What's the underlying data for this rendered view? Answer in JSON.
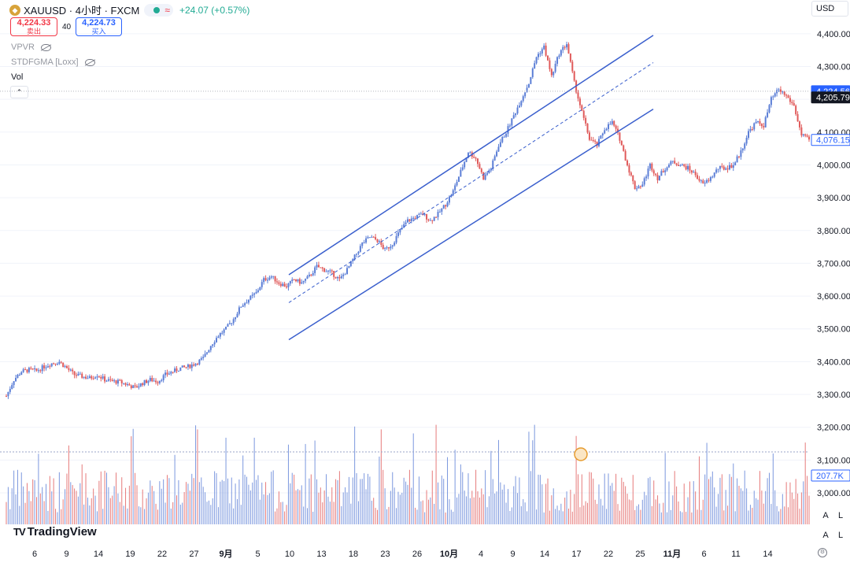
{
  "header": {
    "symbol_icon": "gold-coin-icon",
    "title": "XAUUSD · 4小时 · FXCM",
    "status_icons": [
      "market-open-dot-icon",
      "wave-icon"
    ],
    "status_glyph": "≈",
    "change": "+24.07 (+0.57%)",
    "sell_price": "4,224.33",
    "sell_label": "卖出",
    "spread": "40",
    "buy_price": "4,224.73",
    "buy_label": "买入"
  },
  "indicators": [
    {
      "name": "VPVR",
      "icon": "hidden-eye-icon"
    },
    {
      "name": "STDFGMA [Loxx]",
      "icon": "hidden-eye-icon"
    }
  ],
  "volume_label": "Vol",
  "collapse_glyph": "⌃",
  "currency": "USD",
  "scale_buttons": [
    "A",
    "L"
  ],
  "logo": {
    "mark": "TV",
    "text": "TradingView"
  },
  "colors": {
    "up": "#5b7ed6",
    "down": "#e05a5a",
    "channel": "#3a5fcd",
    "grid": "#f0f3fa"
  },
  "chart_data": {
    "type": "candlestick",
    "y_ticks": [
      "4,400.00",
      "4,300.00",
      "4,200.00",
      "4,100.00",
      "4,000.00",
      "3,900.00",
      "3,800.00",
      "3,700.00",
      "3,600.00",
      "3,500.00",
      "3,400.00",
      "3,300.00",
      "3,200.00",
      "3,100.00",
      "3,000.00"
    ],
    "y_tick_values": [
      4400,
      4300,
      4200,
      4100,
      4000,
      3900,
      3800,
      3700,
      3600,
      3500,
      3400,
      3300,
      3200,
      3100,
      3000
    ],
    "ylim": [
      2950,
      4500
    ],
    "x_ticks": [
      "6",
      "9",
      "14",
      "19",
      "22",
      "27",
      "9月",
      "5",
      "10",
      "13",
      "18",
      "23",
      "26",
      "10月",
      "4",
      "9",
      "14",
      "17",
      "22",
      "25",
      "11月",
      "6",
      "11",
      "14"
    ],
    "price_labels": {
      "last": "4,224.56",
      "prev_close": "4,205.79",
      "lower": "4,076.15",
      "volume": "207.7K"
    },
    "price_label_values": {
      "last": 4224.56,
      "prev_close": 4205.79,
      "lower": 4076.15
    },
    "price_path": [
      [
        0,
        3295
      ],
      [
        1,
        3345
      ],
      [
        2,
        3370
      ],
      [
        3,
        3375
      ],
      [
        4,
        3372
      ],
      [
        5,
        3385
      ],
      [
        6,
        3395
      ],
      [
        7,
        3400
      ],
      [
        8,
        3380
      ],
      [
        9,
        3360
      ],
      [
        10,
        3355
      ],
      [
        11,
        3350
      ],
      [
        12,
        3360
      ],
      [
        13,
        3345
      ],
      [
        14,
        3340
      ],
      [
        15,
        3338
      ],
      [
        16,
        3330
      ],
      [
        17,
        3320
      ],
      [
        18,
        3335
      ],
      [
        19,
        3345
      ],
      [
        20,
        3340
      ],
      [
        21,
        3360
      ],
      [
        22,
        3370
      ],
      [
        23,
        3380
      ],
      [
        24,
        3385
      ],
      [
        25,
        3395
      ],
      [
        26,
        3410
      ],
      [
        27,
        3450
      ],
      [
        28,
        3480
      ],
      [
        29,
        3500
      ],
      [
        30,
        3530
      ],
      [
        31,
        3570
      ],
      [
        32,
        3590
      ],
      [
        33,
        3610
      ],
      [
        34,
        3650
      ],
      [
        35,
        3660
      ],
      [
        36,
        3640
      ],
      [
        37,
        3630
      ],
      [
        38,
        3650
      ],
      [
        39,
        3640
      ],
      [
        40,
        3660
      ],
      [
        41,
        3690
      ],
      [
        42,
        3680
      ],
      [
        43,
        3670
      ],
      [
        44,
        3650
      ],
      [
        45,
        3680
      ],
      [
        46,
        3720
      ],
      [
        47,
        3760
      ],
      [
        48,
        3780
      ],
      [
        49,
        3770
      ],
      [
        50,
        3740
      ],
      [
        51,
        3760
      ],
      [
        52,
        3800
      ],
      [
        53,
        3830
      ],
      [
        54,
        3840
      ],
      [
        55,
        3850
      ],
      [
        56,
        3830
      ],
      [
        57,
        3850
      ],
      [
        58,
        3880
      ],
      [
        59,
        3920
      ],
      [
        60,
        3980
      ],
      [
        61,
        4040
      ],
      [
        62,
        4020
      ],
      [
        63,
        3960
      ],
      [
        64,
        3990
      ],
      [
        65,
        4060
      ],
      [
        66,
        4100
      ],
      [
        67,
        4150
      ],
      [
        68,
        4200
      ],
      [
        69,
        4250
      ],
      [
        70,
        4330
      ],
      [
        71,
        4360
      ],
      [
        72,
        4270
      ],
      [
        73,
        4340
      ],
      [
        74,
        4370
      ],
      [
        75,
        4250
      ],
      [
        76,
        4160
      ],
      [
        77,
        4080
      ],
      [
        78,
        4060
      ],
      [
        79,
        4110
      ],
      [
        80,
        4130
      ],
      [
        81,
        4080
      ],
      [
        82,
        4000
      ],
      [
        83,
        3930
      ],
      [
        84,
        3940
      ],
      [
        85,
        4000
      ],
      [
        86,
        3960
      ],
      [
        87,
        3990
      ],
      [
        88,
        4010
      ],
      [
        89,
        4000
      ],
      [
        90,
        3990
      ],
      [
        91,
        3970
      ],
      [
        92,
        3940
      ],
      [
        93,
        3960
      ],
      [
        94,
        3990
      ],
      [
        95,
        3990
      ],
      [
        96,
        4000
      ],
      [
        97,
        4040
      ],
      [
        98,
        4100
      ],
      [
        99,
        4130
      ],
      [
        100,
        4120
      ],
      [
        101,
        4200
      ],
      [
        102,
        4230
      ],
      [
        103,
        4210
      ],
      [
        104,
        4180
      ],
      [
        105,
        4090
      ],
      [
        106,
        4076
      ]
    ],
    "channel": {
      "upper": [
        [
          9,
          3665
        ],
        [
          100,
          4395
        ]
      ],
      "middle": [
        [
          9,
          3580
        ],
        [
          100,
          4312
        ]
      ],
      "lower": [
        [
          9,
          3467
        ],
        [
          100,
          4170
        ]
      ]
    },
    "volume_reference_marker": "alert-clock-icon"
  }
}
